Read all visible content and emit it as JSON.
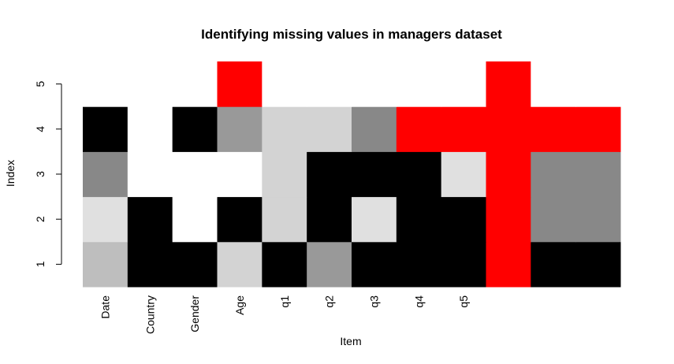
{
  "chart_data": {
    "type": "heatmap",
    "title": "Identifying missing values in managers dataset",
    "xlabel": "Item",
    "ylabel": "Index",
    "x_categories": [
      "Date",
      "Country",
      "Gender",
      "Age",
      "q1",
      "q2",
      "q3",
      "q4",
      "q5",
      "",
      "",
      ""
    ],
    "y_categories": [
      "1",
      "2",
      "3",
      "4",
      "5"
    ],
    "y_ticks": [
      "1",
      "2",
      "3",
      "4",
      "5"
    ],
    "legend": "none",
    "grid": false,
    "colors": {
      "missing": "#ff0000",
      "black": "#000000",
      "white": "#ffffff",
      "dark_gray": "#888888",
      "mid_gray": "#999999",
      "silver": "#bebebe",
      "light_gray": "#d3d3d3",
      "pale_gray": "#e0e0e0"
    },
    "cells": [
      [
        "#bebebe",
        "#000000",
        "#000000",
        "#d3d3d3",
        "#000000",
        "#999999",
        "#000000",
        "#000000",
        "#000000",
        "#ff0000",
        "#000000",
        "#000000"
      ],
      [
        "#e0e0e0",
        "#000000",
        "#ffffff",
        "#000000",
        "#d3d3d3",
        "#000000",
        "#e0e0e0",
        "#000000",
        "#000000",
        "#ff0000",
        "#888888",
        "#888888"
      ],
      [
        "#888888",
        "#ffffff",
        "#ffffff",
        "#ffffff",
        "#d3d3d3",
        "#000000",
        "#000000",
        "#000000",
        "#e0e0e0",
        "#ff0000",
        "#888888",
        "#888888"
      ],
      [
        "#000000",
        "#ffffff",
        "#000000",
        "#999999",
        "#d3d3d3",
        "#d3d3d3",
        "#888888",
        "#ff0000",
        "#ff0000",
        "#ff0000",
        "#ff0000",
        "#ff0000"
      ],
      [
        "#ffffff",
        "#ffffff",
        "#ffffff",
        "#ff0000",
        "#ffffff",
        "#ffffff",
        "#ffffff",
        "#ffffff",
        "#ffffff",
        "#ff0000",
        "#ffffff",
        "#ffffff"
      ]
    ]
  }
}
